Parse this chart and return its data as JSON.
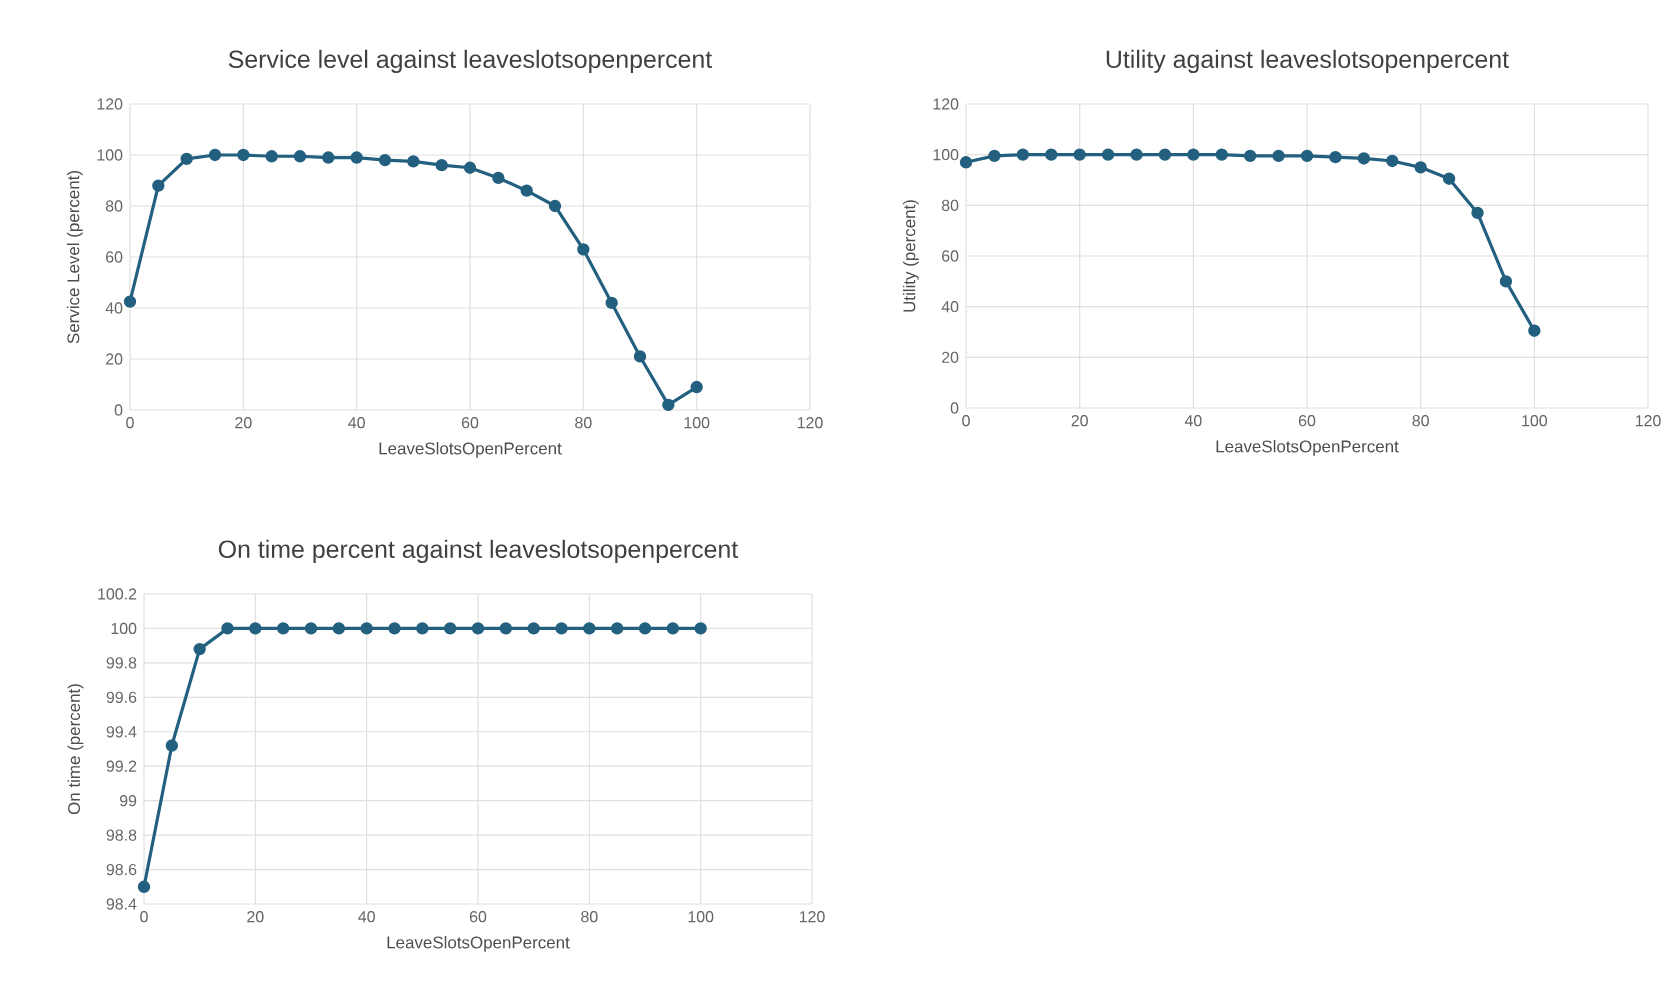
{
  "chart_data": [
    {
      "type": "line",
      "title": "Service level against leaveslotsopenpercent",
      "xlabel": "LeaveSlotsOpenPercent",
      "ylabel": "Service Level (percent)",
      "color": "#23607f",
      "marker": "circle",
      "grid": true,
      "x": [
        0,
        5,
        10,
        15,
        20,
        25,
        30,
        35,
        40,
        45,
        50,
        55,
        60,
        65,
        70,
        75,
        80,
        85,
        90,
        95,
        100
      ],
      "values": [
        42.5,
        88,
        98.5,
        100,
        100,
        99.5,
        99.5,
        99,
        99,
        98,
        97.5,
        96,
        95,
        91,
        86,
        80,
        63,
        42,
        21,
        2,
        9
      ],
      "xlim": [
        0,
        120
      ],
      "xticks": [
        0,
        20,
        40,
        60,
        80,
        100,
        120
      ],
      "ylim": [
        0,
        120
      ],
      "yticks": [
        0,
        20,
        40,
        60,
        80,
        100,
        120
      ]
    },
    {
      "type": "line",
      "title": "Utility against leaveslotsopenpercent",
      "xlabel": "LeaveSlotsOpenPercent",
      "ylabel": "Utility (percent)",
      "color": "#23607f",
      "marker": "circle",
      "grid": true,
      "x": [
        0,
        5,
        10,
        15,
        20,
        25,
        30,
        35,
        40,
        45,
        50,
        55,
        60,
        65,
        70,
        75,
        80,
        85,
        90,
        95,
        100
      ],
      "values": [
        97,
        99.5,
        100,
        100,
        100,
        100,
        100,
        100,
        100,
        100,
        99.5,
        99.5,
        99.5,
        99,
        98.5,
        97.5,
        95,
        90.5,
        77,
        50,
        30.5
      ],
      "xlim": [
        0,
        120
      ],
      "xticks": [
        0,
        20,
        40,
        60,
        80,
        100,
        120
      ],
      "ylim": [
        0,
        120
      ],
      "yticks": [
        0,
        20,
        40,
        60,
        80,
        100,
        120
      ]
    },
    {
      "type": "line",
      "title": "On time percent against leaveslotsopenpercent",
      "xlabel": "LeaveSlotsOpenPercent",
      "ylabel": "On time (percent)",
      "color": "#23607f",
      "marker": "circle",
      "grid": true,
      "x": [
        0,
        5,
        10,
        15,
        20,
        25,
        30,
        35,
        40,
        45,
        50,
        55,
        60,
        65,
        70,
        75,
        80,
        85,
        90,
        95,
        100
      ],
      "values": [
        98.5,
        99.32,
        99.88,
        100,
        100,
        100,
        100,
        100,
        100,
        100,
        100,
        100,
        100,
        100,
        100,
        100,
        100,
        100,
        100,
        100,
        100
      ],
      "xlim": [
        0,
        120
      ],
      "xticks": [
        0,
        20,
        40,
        60,
        80,
        100,
        120
      ],
      "ylim": [
        98.4,
        100.2
      ],
      "yticks": [
        98.4,
        98.6,
        98.8,
        99,
        99.2,
        99.4,
        99.6,
        99.8,
        100,
        100.2
      ]
    }
  ]
}
